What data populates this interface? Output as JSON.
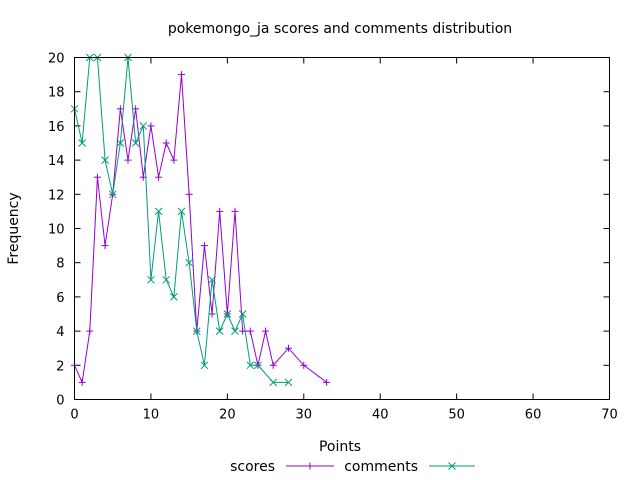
{
  "chart_data": {
    "type": "line",
    "title": "pokemongo_ja scores and comments distribution",
    "xlabel": "Points",
    "ylabel": "Frequency",
    "xlim": [
      0,
      70
    ],
    "ylim": [
      0,
      20
    ],
    "xticks": [
      0,
      10,
      20,
      30,
      40,
      50,
      60,
      70
    ],
    "yticks": [
      0,
      2,
      4,
      6,
      8,
      10,
      12,
      14,
      16,
      18,
      20
    ],
    "grid": false,
    "legend_position": "bottom-center",
    "series": [
      {
        "name": "scores",
        "color": "#9400d3",
        "marker": "plus",
        "points": [
          [
            0,
            2
          ],
          [
            1,
            1
          ],
          [
            2,
            4
          ],
          [
            3,
            13
          ],
          [
            4,
            9
          ],
          [
            5,
            12
          ],
          [
            6,
            17
          ],
          [
            7,
            14
          ],
          [
            8,
            17
          ],
          [
            9,
            13
          ],
          [
            10,
            16
          ],
          [
            11,
            13
          ],
          [
            12,
            15
          ],
          [
            13,
            14
          ],
          [
            14,
            19
          ],
          [
            15,
            12
          ],
          [
            16,
            4
          ],
          [
            17,
            9
          ],
          [
            18,
            5
          ],
          [
            19,
            11
          ],
          [
            20,
            5
          ],
          [
            21,
            11
          ],
          [
            22,
            4
          ],
          [
            23,
            4
          ],
          [
            24,
            2
          ],
          [
            25,
            4
          ],
          [
            26,
            2
          ],
          [
            28,
            3
          ],
          [
            30,
            2
          ],
          [
            33,
            1
          ]
        ]
      },
      {
        "name": "comments",
        "color": "#009e73",
        "marker": "cross",
        "points": [
          [
            0,
            17
          ],
          [
            1,
            15
          ],
          [
            2,
            20
          ],
          [
            3,
            20
          ],
          [
            4,
            14
          ],
          [
            5,
            12
          ],
          [
            6,
            15
          ],
          [
            7,
            20
          ],
          [
            8,
            15
          ],
          [
            9,
            16
          ],
          [
            10,
            7
          ],
          [
            11,
            11
          ],
          [
            12,
            7
          ],
          [
            13,
            6
          ],
          [
            14,
            11
          ],
          [
            15,
            8
          ],
          [
            16,
            4
          ],
          [
            17,
            2
          ],
          [
            18,
            7
          ],
          [
            19,
            4
          ],
          [
            20,
            5
          ],
          [
            21,
            4
          ],
          [
            22,
            5
          ],
          [
            23,
            2
          ],
          [
            24,
            2
          ],
          [
            26,
            1
          ],
          [
            28,
            1
          ]
        ]
      }
    ]
  }
}
